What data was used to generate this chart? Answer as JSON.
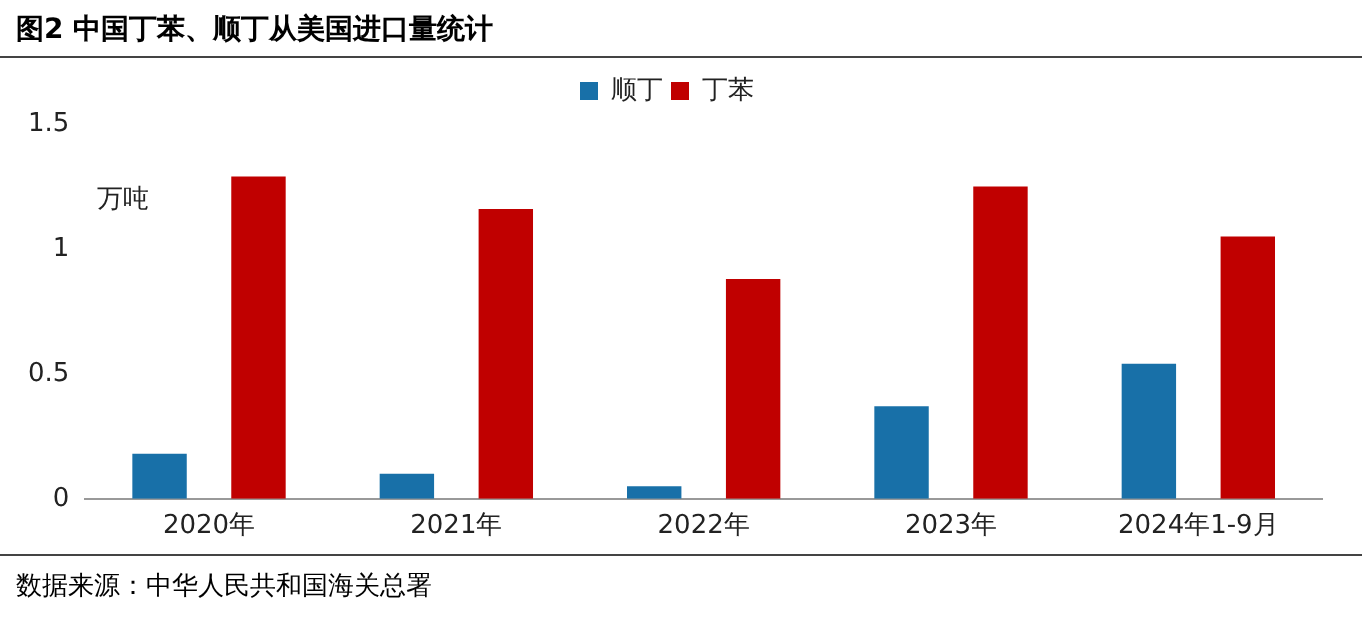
{
  "chart_data": {
    "type": "bar",
    "title": "图2 中国丁苯、顺丁从美国进口量统计",
    "ylabel": "万吨",
    "categories": [
      "2020年",
      "2021年",
      "2022年",
      "2023年",
      "2024年1-9月"
    ],
    "series": [
      {
        "name": "顺丁",
        "color": "#1870a8",
        "values": [
          0.18,
          0.1,
          0.05,
          0.37,
          0.54
        ]
      },
      {
        "name": "丁苯",
        "color": "#c00000",
        "values": [
          1.29,
          1.16,
          0.88,
          1.25,
          1.05
        ]
      }
    ],
    "ylim": [
      0,
      1.5
    ],
    "yticks": [
      0,
      0.5,
      1,
      1.5
    ],
    "grid": false,
    "legend": "top",
    "annotations": [
      "数据来源：中华人民共和国海关总署"
    ]
  }
}
